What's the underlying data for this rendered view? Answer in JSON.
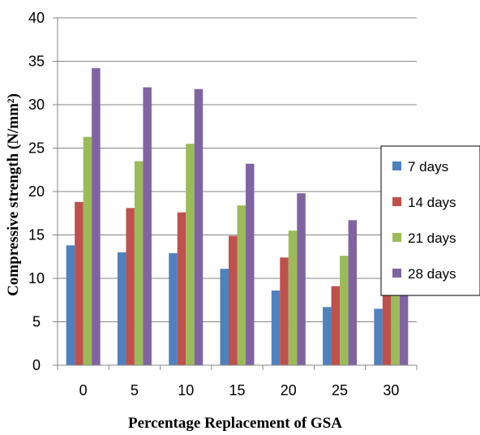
{
  "chart_data": {
    "type": "bar",
    "title": "",
    "xlabel": "Percentage Replacement of GSA",
    "ylabel": "Compressive strength (N/mm²)",
    "ylim": [
      0,
      40
    ],
    "yticks": [
      0,
      5,
      10,
      15,
      20,
      25,
      30,
      35,
      40
    ],
    "grid": true,
    "legend_position": "right",
    "categories": [
      "0",
      "5",
      "10",
      "15",
      "20",
      "25",
      "30"
    ],
    "series": [
      {
        "name": "7 days",
        "color": "#4F81BD",
        "values": [
          13.8,
          13.0,
          12.9,
          11.1,
          8.6,
          6.7,
          6.5
        ]
      },
      {
        "name": "14 days",
        "color": "#C0504D",
        "values": [
          18.8,
          18.1,
          17.6,
          14.9,
          12.4,
          9.1,
          8.7
        ]
      },
      {
        "name": "21 days",
        "color": "#9BBB59",
        "values": [
          26.3,
          23.5,
          25.5,
          18.4,
          15.5,
          12.6,
          9.6
        ]
      },
      {
        "name": "28 days",
        "color": "#8064A2",
        "values": [
          34.2,
          32.0,
          31.8,
          23.2,
          19.8,
          16.7,
          13.1
        ]
      }
    ]
  }
}
